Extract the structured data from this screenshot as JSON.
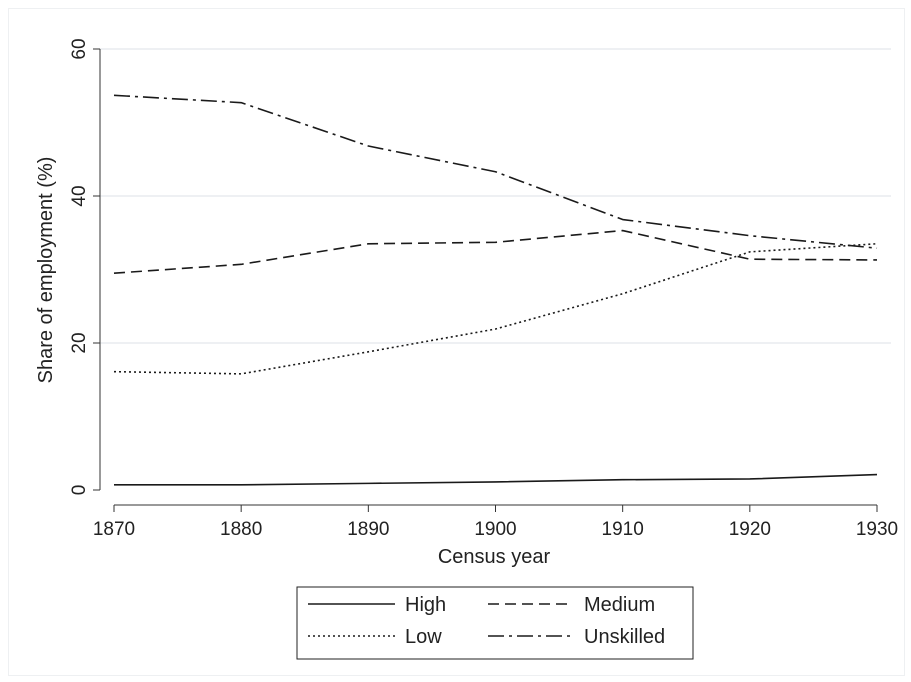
{
  "chart_data": {
    "type": "line",
    "title": "",
    "xlabel": "Census year",
    "ylabel": "Share of employment (%)",
    "x": [
      1870,
      1880,
      1890,
      1900,
      1910,
      1920,
      1930
    ],
    "xlim": [
      1870,
      1930
    ],
    "ylim": [
      0,
      60
    ],
    "x_ticks": [
      1870,
      1880,
      1890,
      1900,
      1910,
      1920,
      1930
    ],
    "y_ticks": [
      0,
      20,
      40,
      60
    ],
    "grid": "horizontal",
    "legend_position": "bottom",
    "series": [
      {
        "name": "High",
        "style": "solid",
        "values": [
          0.7,
          0.7,
          0.9,
          1.1,
          1.4,
          1.5,
          2.1
        ]
      },
      {
        "name": "Medium",
        "style": "dashed",
        "values": [
          29.5,
          30.7,
          33.5,
          33.7,
          35.3,
          31.4,
          31.3
        ]
      },
      {
        "name": "Low",
        "style": "dotted",
        "values": [
          16.1,
          15.8,
          18.8,
          21.9,
          26.7,
          32.4,
          33.5
        ]
      },
      {
        "name": "Unskilled",
        "style": "dashdot",
        "values": [
          53.7,
          52.7,
          46.8,
          43.3,
          36.8,
          34.6,
          32.9
        ]
      }
    ],
    "colors": {
      "lines": "#1a1a1a",
      "grid": "#e9ecef",
      "axis": "#333333"
    }
  }
}
